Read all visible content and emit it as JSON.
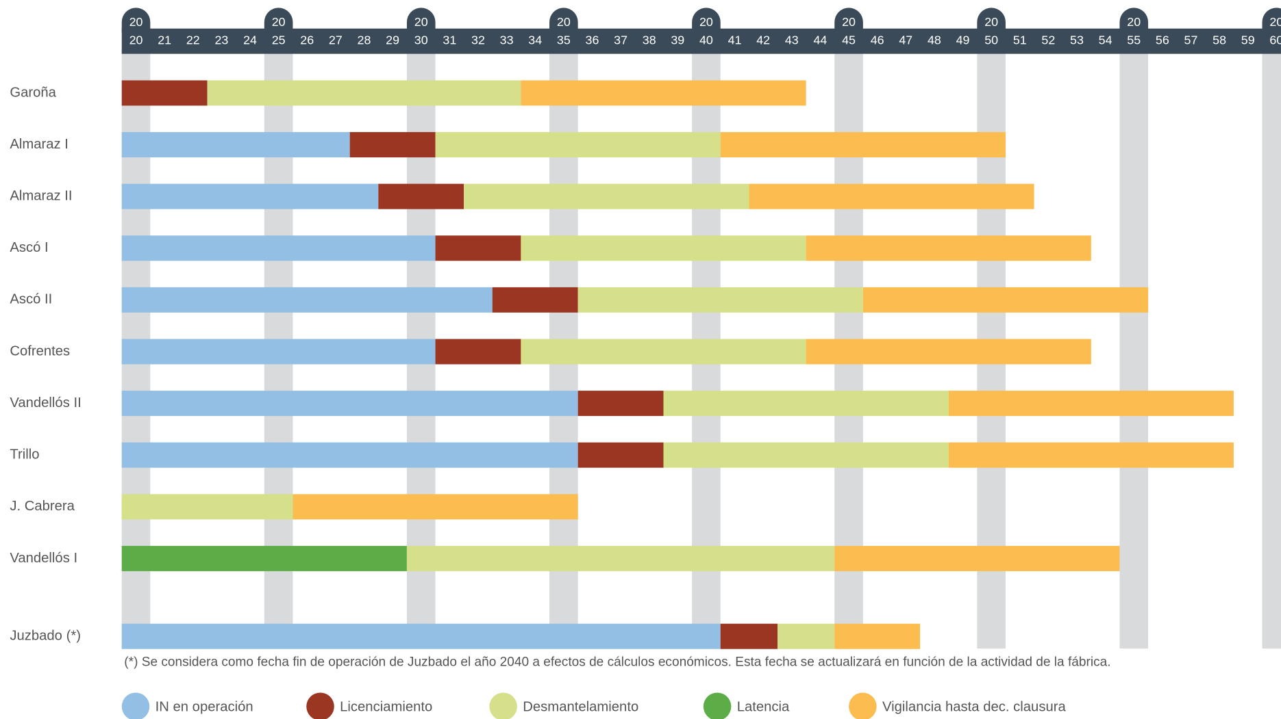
{
  "chart_data": {
    "type": "gantt",
    "categories": [
      "Garoña",
      "Almaraz I",
      "Almaraz II",
      "Ascó I",
      "Ascó II",
      "Cofrentes",
      "Vandellós II",
      "Trillo",
      "J. Cabrera",
      "Vandellós I",
      "Juzbado (*)"
    ],
    "series": [
      {
        "name": "IN en operación",
        "color": "#92bfe3",
        "values": [
          null,
          8,
          9,
          11,
          13,
          11,
          16,
          16,
          null,
          null,
          21
        ]
      },
      {
        "name": "Licenciamiento",
        "color": "#9b3623",
        "values": [
          3,
          3,
          3,
          3,
          3,
          3,
          3,
          3,
          null,
          null,
          2
        ]
      },
      {
        "name": "Desmantelamiento",
        "color": "#d6e08a",
        "values": [
          11,
          10,
          10,
          10,
          10,
          10,
          10,
          10,
          6,
          15,
          2
        ]
      },
      {
        "name": "Latencia",
        "color": "#5cad47",
        "values": [
          null,
          null,
          null,
          null,
          null,
          null,
          null,
          null,
          null,
          10,
          null
        ]
      },
      {
        "name": "Vigilancia hasta dec. clausura",
        "color": "#fbbd4f",
        "values": [
          10,
          10,
          10,
          10,
          10,
          10,
          10,
          10,
          10,
          10,
          3
        ]
      }
    ],
    "xlim": [
      2020,
      2060
    ],
    "xticks": [
      {
        "value": 2020,
        "label": "20"
      },
      {
        "value": 2021,
        "label": "21"
      },
      {
        "value": 2022,
        "label": "22"
      },
      {
        "value": 2023,
        "label": "23"
      },
      {
        "value": 2024,
        "label": "24"
      },
      {
        "value": 2025,
        "label": "25"
      },
      {
        "value": 2026,
        "label": "26"
      },
      {
        "value": 2027,
        "label": "27"
      },
      {
        "value": 2028,
        "label": "28"
      },
      {
        "value": 2029,
        "label": "29"
      },
      {
        "value": 2030,
        "label": "30"
      },
      {
        "value": 2031,
        "label": "31"
      },
      {
        "value": 2032,
        "label": "32"
      },
      {
        "value": 2033,
        "label": "33"
      },
      {
        "value": 2034,
        "label": "34"
      },
      {
        "value": 2035,
        "label": "35"
      },
      {
        "value": 2036,
        "label": "36"
      },
      {
        "value": 2037,
        "label": "37"
      },
      {
        "value": 2038,
        "label": "38"
      },
      {
        "value": 2039,
        "label": "39"
      },
      {
        "value": 2040,
        "label": "40"
      },
      {
        "value": 2041,
        "label": "41"
      },
      {
        "value": 2042,
        "label": "42"
      },
      {
        "value": 2043,
        "label": "43"
      },
      {
        "value": 2044,
        "label": "44"
      },
      {
        "value": 2045,
        "label": "45"
      },
      {
        "value": 2046,
        "label": "46"
      },
      {
        "value": 2047,
        "label": "47"
      },
      {
        "value": 2048,
        "label": "48"
      },
      {
        "value": 2049,
        "label": "49"
      },
      {
        "value": 2050,
        "label": "50"
      },
      {
        "value": 2051,
        "label": "51"
      },
      {
        "value": 2052,
        "label": "52"
      },
      {
        "value": 2053,
        "label": "53"
      },
      {
        "value": 2054,
        "label": "54"
      },
      {
        "value": 2055,
        "label": "55"
      },
      {
        "value": 2056,
        "label": "56"
      },
      {
        "value": 2057,
        "label": "57"
      },
      {
        "value": 2058,
        "label": "58"
      },
      {
        "value": 2059,
        "label": "59"
      },
      {
        "value": 2060,
        "label": "60"
      }
    ],
    "xmajorticks": [
      {
        "value": 2020,
        "label": "20"
      },
      {
        "value": 2025,
        "label": "20"
      },
      {
        "value": 2030,
        "label": "20"
      },
      {
        "value": 2035,
        "label": "20"
      },
      {
        "value": 2040,
        "label": "20"
      },
      {
        "value": 2045,
        "label": "20"
      },
      {
        "value": 2050,
        "label": "20"
      },
      {
        "value": 2055,
        "label": "20"
      },
      {
        "value": 2060,
        "label": "20"
      }
    ],
    "footnote": "(*) Se considera como fecha fin de operación de Juzbado el año 2040 a efectos de cálculos económicos. Esta fecha se actualizará en función de la actividad de la fábrica."
  }
}
